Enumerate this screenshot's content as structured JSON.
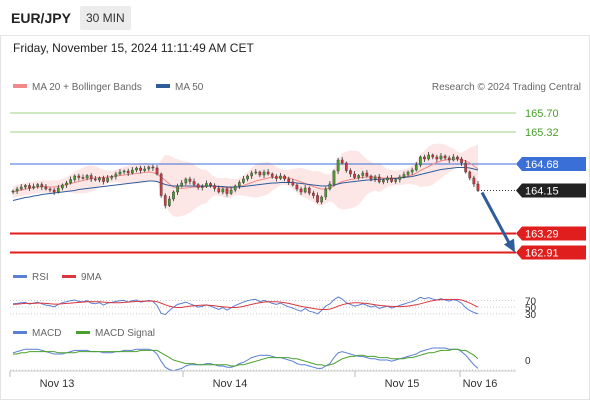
{
  "header": {
    "symbol": "EUR/JPY",
    "interval": "30 MIN",
    "datetime": "Friday, November 15, 2024 11:11:49 AM CET"
  },
  "legend": {
    "items": [
      {
        "label": "MA 20 + Bollinger Bands",
        "color": "#f08a8a"
      },
      {
        "label": "MA 50",
        "color": "#2f5d9c"
      }
    ],
    "credit": "Research © 2024 Trading Central"
  },
  "colors": {
    "up": "#4aa02c",
    "down": "#d9363e",
    "support": "#e01e1e",
    "pivot": "#3b6fd8",
    "ma50": "#2f5d9c",
    "ma20": "#f08a8a",
    "band": "#fde2e2"
  },
  "chart_data": [
    {
      "type": "candlestick",
      "x_labels": [
        "Nov 13",
        "Nov 14",
        "Nov 15",
        "Nov 16"
      ],
      "price_lines": {
        "resistance": [
          165.7,
          165.32
        ],
        "pivot": 164.68,
        "last": 164.15,
        "support": [
          163.29,
          162.91
        ]
      },
      "tags": [
        "165.70",
        "165.32",
        "164.68",
        "164.15",
        "163.29",
        "162.91"
      ],
      "ylim": [
        162.8,
        166.0
      ],
      "close": [
        164.14,
        164.18,
        164.22,
        164.25,
        164.2,
        164.23,
        164.27,
        164.22,
        164.18,
        164.16,
        164.12,
        164.2,
        164.26,
        164.3,
        164.37,
        164.44,
        164.41,
        164.4,
        164.45,
        164.38,
        164.36,
        164.4,
        164.33,
        164.4,
        164.43,
        164.48,
        164.52,
        164.54,
        164.5,
        164.56,
        164.6,
        164.55,
        164.58,
        164.62,
        164.6,
        164.48,
        164.05,
        163.85,
        163.98,
        164.12,
        164.24,
        164.3,
        164.38,
        164.33,
        164.27,
        164.21,
        164.23,
        164.29,
        164.25,
        164.19,
        164.12,
        164.18,
        164.09,
        164.16,
        164.24,
        164.31,
        164.38,
        164.44,
        164.5,
        164.52,
        164.46,
        164.52,
        164.48,
        164.43,
        164.39,
        164.44,
        164.38,
        164.32,
        164.26,
        164.18,
        164.12,
        164.2,
        164.1,
        164.05,
        163.92,
        164.02,
        164.18,
        164.28,
        164.54,
        164.76,
        164.7,
        164.55,
        164.48,
        164.41,
        164.45,
        164.5,
        164.44,
        164.38,
        164.42,
        164.32,
        164.36,
        164.4,
        164.33,
        164.37,
        164.42,
        164.47,
        164.52,
        164.56,
        164.66,
        164.82,
        164.78,
        164.86,
        164.82,
        164.78,
        164.84,
        164.8,
        164.76,
        164.82,
        164.78,
        164.7,
        164.52,
        164.4,
        164.28,
        164.15
      ],
      "ma20": [
        164.12,
        164.14,
        164.16,
        164.18,
        164.19,
        164.21,
        164.22,
        164.23,
        164.23,
        164.22,
        164.22,
        164.23,
        164.25,
        164.27,
        164.29,
        164.31,
        164.33,
        164.35,
        164.37,
        164.39,
        164.4,
        164.41,
        164.41,
        164.42,
        164.43,
        164.44,
        164.45,
        164.46,
        164.47,
        164.48,
        164.49,
        164.5,
        164.51,
        164.52,
        164.51,
        164.48,
        164.42,
        164.35,
        164.28,
        164.22,
        164.2,
        164.19,
        164.2,
        164.21,
        164.22,
        164.22,
        164.22,
        164.23,
        164.24,
        164.23,
        164.22,
        164.21,
        164.2,
        164.2,
        164.21,
        164.23,
        164.25,
        164.28,
        164.31,
        164.34,
        164.36,
        164.38,
        164.4,
        164.41,
        164.41,
        164.42,
        164.41,
        164.4,
        164.38,
        164.35,
        164.32,
        164.29,
        164.26,
        164.23,
        164.2,
        164.18,
        164.18,
        164.2,
        164.24,
        164.29,
        164.33,
        164.35,
        164.37,
        164.38,
        164.4,
        164.41,
        164.42,
        164.42,
        164.42,
        164.41,
        164.4,
        164.4,
        164.4,
        164.4,
        164.41,
        164.42,
        164.44,
        164.46,
        164.5,
        164.55,
        164.59,
        164.63,
        164.67,
        164.71,
        164.74,
        164.76,
        164.77,
        164.78,
        164.78,
        164.77,
        164.74,
        164.7,
        164.64,
        164.58
      ],
      "ma50": [
        163.95,
        163.97,
        163.99,
        164.01,
        164.02,
        164.04,
        164.05,
        164.07,
        164.08,
        164.09,
        164.1,
        164.11,
        164.12,
        164.13,
        164.14,
        164.15,
        164.17,
        164.18,
        164.19,
        164.2,
        164.21,
        164.22,
        164.23,
        164.24,
        164.25,
        164.26,
        164.27,
        164.28,
        164.29,
        164.3,
        164.31,
        164.32,
        164.33,
        164.34,
        164.34,
        164.33,
        164.3,
        164.27,
        164.25,
        164.24,
        164.24,
        164.24,
        164.24,
        164.24,
        164.24,
        164.24,
        164.24,
        164.24,
        164.24,
        164.24,
        164.23,
        164.23,
        164.22,
        164.22,
        164.22,
        164.22,
        164.23,
        164.24,
        164.25,
        164.26,
        164.27,
        164.28,
        164.29,
        164.3,
        164.3,
        164.31,
        164.31,
        164.31,
        164.31,
        164.3,
        164.29,
        164.28,
        164.27,
        164.26,
        164.25,
        164.24,
        164.24,
        164.25,
        164.26,
        164.28,
        164.3,
        164.31,
        164.32,
        164.33,
        164.34,
        164.35,
        164.36,
        164.36,
        164.37,
        164.37,
        164.38,
        164.38,
        164.39,
        164.39,
        164.4,
        164.41,
        164.42,
        164.43,
        164.45,
        164.47,
        164.49,
        164.51,
        164.53,
        164.55,
        164.57,
        164.58,
        164.59,
        164.6,
        164.61,
        164.61,
        164.61,
        164.6,
        164.58,
        164.56
      ]
    },
    {
      "type": "line",
      "legend": [
        "RSI",
        "9MA"
      ],
      "levels": [
        70,
        50,
        30
      ],
      "level_labels": [
        "70",
        "50",
        "30"
      ],
      "ylim": [
        0,
        100
      ],
      "series": [
        {
          "name": "RSI",
          "color": "#5a7fd6",
          "values": [
            60,
            61,
            63,
            64,
            59,
            62,
            65,
            60,
            56,
            54,
            51,
            58,
            63,
            66,
            69,
            71,
            67,
            66,
            69,
            62,
            60,
            63,
            56,
            62,
            64,
            67,
            69,
            70,
            65,
            69,
            71,
            65,
            67,
            70,
            67,
            55,
            32,
            28,
            40,
            50,
            58,
            61,
            65,
            60,
            55,
            50,
            52,
            57,
            53,
            48,
            43,
            49,
            41,
            48,
            55,
            60,
            65,
            69,
            72,
            73,
            66,
            70,
            66,
            61,
            58,
            62,
            56,
            51,
            47,
            42,
            38,
            46,
            38,
            35,
            30,
            40,
            53,
            60,
            72,
            80,
            74,
            63,
            58,
            53,
            56,
            60,
            55,
            50,
            54,
            46,
            50,
            53,
            47,
            51,
            55,
            59,
            63,
            66,
            72,
            79,
            75,
            78,
            74,
            71,
            75,
            71,
            68,
            72,
            69,
            62,
            48,
            40,
            34,
            30
          ]
        },
        {
          "name": "9MA",
          "color": "#d9363e",
          "values": [
            58,
            59,
            60,
            61,
            61,
            61,
            62,
            62,
            61,
            60,
            59,
            59,
            60,
            61,
            62,
            63,
            64,
            65,
            66,
            66,
            66,
            66,
            65,
            64,
            63,
            63,
            63,
            64,
            65,
            66,
            67,
            67,
            68,
            68,
            68,
            66,
            62,
            57,
            53,
            50,
            49,
            49,
            51,
            53,
            54,
            55,
            56,
            56,
            55,
            54,
            52,
            51,
            50,
            49,
            49,
            50,
            52,
            55,
            58,
            61,
            63,
            65,
            66,
            66,
            66,
            65,
            63,
            61,
            58,
            55,
            52,
            50,
            48,
            46,
            44,
            43,
            43,
            44,
            48,
            53,
            57,
            60,
            62,
            63,
            63,
            62,
            61,
            59,
            57,
            55,
            54,
            53,
            52,
            52,
            51,
            52,
            53,
            55,
            57,
            60,
            63,
            66,
            69,
            71,
            72,
            73,
            73,
            73,
            73,
            71,
            67,
            62,
            56,
            50
          ]
        }
      ]
    },
    {
      "type": "line",
      "legend": [
        "MACD",
        "MACD Signal"
      ],
      "zero_label": "0",
      "series": [
        {
          "name": "MACD",
          "color": "#5a7fd6",
          "values": [
            0.06,
            0.07,
            0.08,
            0.09,
            0.09,
            0.09,
            0.09,
            0.08,
            0.07,
            0.06,
            0.05,
            0.05,
            0.05,
            0.06,
            0.07,
            0.08,
            0.08,
            0.08,
            0.08,
            0.07,
            0.07,
            0.07,
            0.06,
            0.06,
            0.06,
            0.07,
            0.07,
            0.08,
            0.08,
            0.08,
            0.09,
            0.09,
            0.09,
            0.09,
            0.08,
            0.05,
            -0.01,
            -0.06,
            -0.08,
            -0.09,
            -0.08,
            -0.07,
            -0.05,
            -0.04,
            -0.04,
            -0.04,
            -0.04,
            -0.03,
            -0.03,
            -0.04,
            -0.05,
            -0.05,
            -0.06,
            -0.06,
            -0.05,
            -0.03,
            -0.02,
            0.0,
            0.02,
            0.03,
            0.04,
            0.04,
            0.04,
            0.03,
            0.02,
            0.02,
            0.01,
            0.0,
            -0.01,
            -0.03,
            -0.04,
            -0.04,
            -0.05,
            -0.06,
            -0.07,
            -0.07,
            -0.05,
            -0.03,
            0.02,
            0.06,
            0.07,
            0.06,
            0.05,
            0.04,
            0.03,
            0.03,
            0.02,
            0.01,
            0.01,
            0.0,
            0.0,
            0.0,
            -0.01,
            0.0,
            0.01,
            0.02,
            0.03,
            0.04,
            0.05,
            0.07,
            0.08,
            0.09,
            0.1,
            0.1,
            0.1,
            0.1,
            0.09,
            0.09,
            0.09,
            0.07,
            0.04,
            0.0,
            -0.04,
            -0.07
          ]
        },
        {
          "name": "MACD Signal",
          "color": "#4aa02c",
          "values": [
            0.05,
            0.05,
            0.06,
            0.06,
            0.07,
            0.07,
            0.07,
            0.07,
            0.07,
            0.07,
            0.07,
            0.06,
            0.06,
            0.06,
            0.06,
            0.06,
            0.07,
            0.07,
            0.07,
            0.07,
            0.07,
            0.07,
            0.07,
            0.07,
            0.07,
            0.07,
            0.07,
            0.07,
            0.07,
            0.07,
            0.07,
            0.08,
            0.08,
            0.08,
            0.08,
            0.08,
            0.06,
            0.04,
            0.02,
            0.0,
            -0.01,
            -0.02,
            -0.03,
            -0.03,
            -0.03,
            -0.04,
            -0.04,
            -0.04,
            -0.04,
            -0.04,
            -0.04,
            -0.04,
            -0.04,
            -0.05,
            -0.05,
            -0.04,
            -0.04,
            -0.03,
            -0.02,
            -0.01,
            0.0,
            0.01,
            0.02,
            0.02,
            0.02,
            0.02,
            0.02,
            0.02,
            0.01,
            0.01,
            0.0,
            -0.01,
            -0.02,
            -0.03,
            -0.04,
            -0.04,
            -0.05,
            -0.04,
            -0.03,
            -0.01,
            0.01,
            0.02,
            0.03,
            0.03,
            0.04,
            0.04,
            0.03,
            0.03,
            0.03,
            0.02,
            0.02,
            0.02,
            0.01,
            0.01,
            0.01,
            0.01,
            0.02,
            0.02,
            0.03,
            0.04,
            0.05,
            0.06,
            0.06,
            0.07,
            0.08,
            0.08,
            0.08,
            0.09,
            0.09,
            0.08,
            0.08,
            0.06,
            0.04,
            0.01
          ]
        }
      ]
    }
  ]
}
